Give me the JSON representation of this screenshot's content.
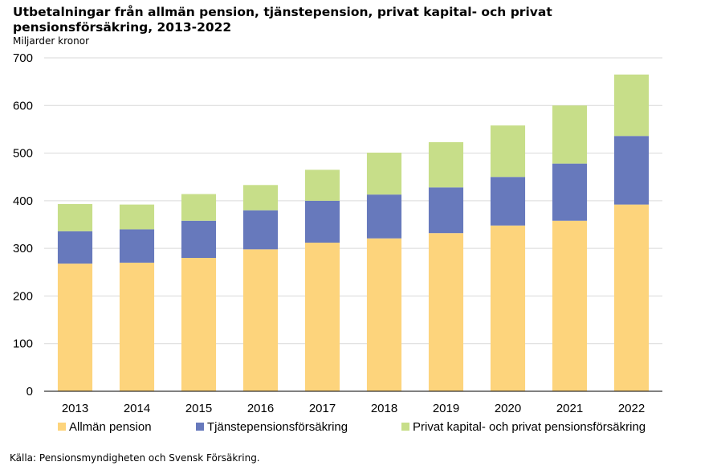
{
  "title": "Utbetalningar från allmän pension, tjänstepension, privat kapital- och privat pensionsförsäkring, 2013-2022",
  "subtitle": "Miljarder kronor",
  "source": "Källa: Pensionsmyndigheten och Svensk Försäkring.",
  "chart_data": {
    "type": "bar",
    "stacked": true,
    "title": "Utbetalningar från allmän pension, tjänstepension, privat kapital- och privat pensionsförsäkring, 2013-2022",
    "ylabel": "Miljarder kronor",
    "xlabel": "",
    "ylim": [
      0,
      700
    ],
    "yticks": [
      0,
      100,
      200,
      300,
      400,
      500,
      600,
      700
    ],
    "grid": true,
    "legend_position": "bottom",
    "categories": [
      "2013",
      "2014",
      "2015",
      "2016",
      "2017",
      "2018",
      "2019",
      "2020",
      "2021",
      "2022"
    ],
    "series": [
      {
        "name": "Allmän pension",
        "color": "#fdd47c",
        "values": [
          268,
          270,
          280,
          298,
          312,
          321,
          332,
          348,
          358,
          392
        ]
      },
      {
        "name": "Tjänstepensionsförsäkring",
        "color": "#6779bc",
        "values": [
          68,
          70,
          78,
          82,
          88,
          92,
          96,
          102,
          120,
          144
        ]
      },
      {
        "name": "Privat kapital- och privat pensionsförsäkring",
        "color": "#c7de89",
        "values": [
          57,
          52,
          56,
          53,
          65,
          88,
          95,
          108,
          122,
          129
        ]
      }
    ]
  }
}
